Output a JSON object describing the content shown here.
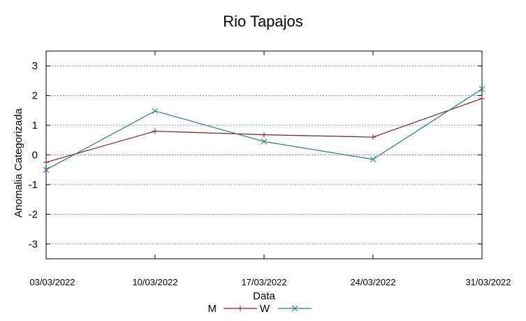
{
  "chart_data": {
    "type": "line",
    "title": "Rio Tapajos",
    "xlabel": "Data",
    "ylabel": "Anomalia Categorizada",
    "categories": [
      "03/03/2022",
      "10/03/2022",
      "17/03/2022",
      "24/03/2022",
      "31/03/2022"
    ],
    "yticks": [
      -3,
      -2,
      -1,
      0,
      1,
      2,
      3
    ],
    "ylim": [
      -3.5,
      3.5
    ],
    "grid": true,
    "legend_position": "bottom-center",
    "series": [
      {
        "name": "M",
        "marker": "+",
        "color": "#8b1a1a",
        "values": [
          -0.25,
          0.8,
          0.68,
          0.6,
          1.9
        ]
      },
      {
        "name": "W",
        "marker": "x",
        "color": "#1f7f7f",
        "values": [
          -0.5,
          1.48,
          0.45,
          -0.15,
          2.22
        ]
      }
    ]
  }
}
